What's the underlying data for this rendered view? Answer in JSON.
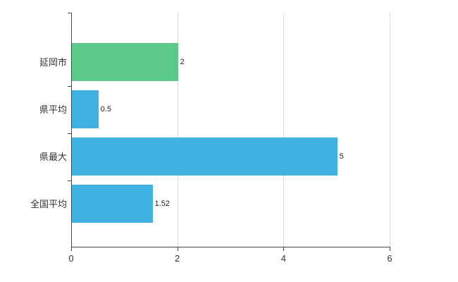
{
  "chart_data": {
    "type": "bar",
    "orientation": "horizontal",
    "title": "",
    "xlabel": "",
    "ylabel": "",
    "categories": [
      "延岡市",
      "県平均",
      "県最大",
      "全国平均"
    ],
    "values": [
      2,
      0.5,
      5,
      1.52
    ],
    "value_labels": [
      "2",
      "0.5",
      "5",
      "1.52"
    ],
    "bar_colors": [
      "#5cc98a",
      "#41b1e1",
      "#41b1e1",
      "#41b1e1"
    ],
    "xlim": [
      0,
      6
    ],
    "x_ticks": [
      0,
      2,
      4,
      6
    ],
    "x_tick_labels": [
      "0",
      "2",
      "4",
      "6"
    ],
    "grid": true,
    "legend": false,
    "background": "#ffffff",
    "axis_color": "#444444",
    "grid_color": "#dddddd",
    "label_color": "#333333"
  }
}
